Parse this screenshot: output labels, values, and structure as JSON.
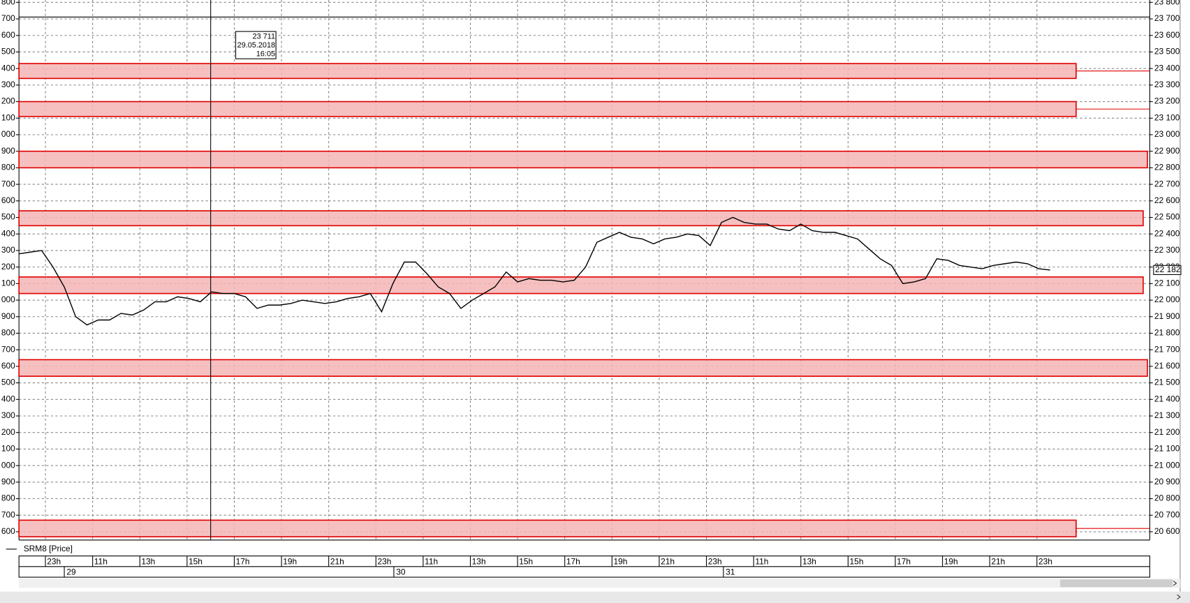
{
  "chart_data": {
    "type": "line",
    "legend": "SRM8 [Price]",
    "series": [
      {
        "name": "SRM8 [Price]",
        "color": "#000000",
        "x": [
          -0.56,
          -0.32,
          -0.08,
          0.16,
          0.4,
          0.64,
          0.88,
          1.12,
          1.36,
          1.6,
          1.84,
          2.08,
          2.32,
          2.56,
          2.8,
          3.04,
          3.28,
          3.52,
          3.76,
          4.0,
          4.24,
          4.48,
          4.72,
          4.96,
          5.2,
          5.44,
          5.68,
          5.92,
          6.16,
          6.4,
          6.64,
          6.88,
          7.12,
          7.36,
          7.6,
          7.84,
          8.08,
          8.32,
          8.56,
          8.8,
          9.04,
          9.28,
          9.52,
          9.76,
          10.0,
          10.24,
          10.48,
          10.72,
          10.96,
          11.2,
          11.44,
          11.68,
          11.92,
          12.16,
          12.4,
          12.64,
          12.88,
          13.12,
          13.36,
          13.6,
          13.84,
          14.08,
          14.32,
          14.56,
          14.8,
          15.04,
          15.28,
          15.52,
          15.76,
          16.0,
          16.24,
          16.48,
          16.72,
          16.96,
          17.2,
          17.44,
          17.68,
          17.92,
          18.16,
          18.4,
          18.64,
          18.88,
          19.12,
          19.36,
          19.6,
          19.84,
          20.08,
          20.32,
          20.56,
          20.8,
          21.04,
          21.28
        ],
        "values": [
          22280,
          22290,
          22300,
          22200,
          22080,
          21900,
          21850,
          21880,
          21880,
          21920,
          21910,
          21940,
          21990,
          21990,
          22020,
          22010,
          21990,
          22050,
          22040,
          22040,
          22020,
          21950,
          21970,
          21970,
          21980,
          22000,
          21990,
          21980,
          21990,
          22010,
          22020,
          22040,
          21930,
          22100,
          22230,
          22230,
          22160,
          22080,
          22040,
          21950,
          22000,
          22040,
          22080,
          22170,
          22110,
          22130,
          22120,
          22120,
          22110,
          22120,
          22200,
          22350,
          22380,
          22410,
          22380,
          22370,
          22340,
          22370,
          22380,
          22400,
          22390,
          22330,
          22470,
          22500,
          22470,
          22460,
          22460,
          22430,
          22420,
          22460,
          22420,
          22410,
          22410,
          22390,
          22370,
          22310,
          22250,
          22210,
          22100,
          22110,
          22130,
          22250,
          22240,
          22210,
          22200,
          22190,
          22210,
          22220,
          22230,
          22220,
          22190,
          22182
        ]
      }
    ],
    "last_price": {
      "value": 22182,
      "label": "22 182"
    },
    "zones": [
      {
        "low": 23340,
        "high": 23430,
        "end": 21.83
      },
      {
        "low": 23110,
        "high": 23200,
        "end": 21.83
      },
      {
        "low": 22800,
        "high": 22900,
        "end": 23.34
      },
      {
        "low": 22450,
        "high": 22540,
        "end": 23.25
      },
      {
        "low": 22040,
        "high": 22140,
        "end": 23.25
      },
      {
        "low": 21540,
        "high": 21640,
        "end": 23.34
      },
      {
        "low": 20570,
        "high": 20670,
        "end": 21.83
      }
    ],
    "zone_fill": "#f5b5b5",
    "zone_stroke": "#e00000",
    "crosshair": {
      "x": 3.5,
      "y": 23711,
      "labels": [
        "23 711",
        "29.05.2018",
        "16:05"
      ]
    },
    "xlim": [
      -0.56,
      23.39
    ],
    "xticks": [
      {
        "value": 0,
        "label": "23h"
      },
      {
        "value": 1,
        "label": "11h"
      },
      {
        "value": 2,
        "label": "13h"
      },
      {
        "value": 3,
        "label": "15h"
      },
      {
        "value": 4,
        "label": "17h"
      },
      {
        "value": 5,
        "label": "19h"
      },
      {
        "value": 6,
        "label": "21h"
      },
      {
        "value": 7,
        "label": "23h"
      },
      {
        "value": 8,
        "label": "11h"
      },
      {
        "value": 9,
        "label": "13h"
      },
      {
        "value": 10,
        "label": "15h"
      },
      {
        "value": 11,
        "label": "17h"
      },
      {
        "value": 12,
        "label": "19h"
      },
      {
        "value": 13,
        "label": "21h"
      },
      {
        "value": 14,
        "label": "23h"
      },
      {
        "value": 15,
        "label": "11h"
      },
      {
        "value": 16,
        "label": "13h"
      },
      {
        "value": 17,
        "label": "15h"
      },
      {
        "value": 18,
        "label": "17h"
      },
      {
        "value": 19,
        "label": "19h"
      },
      {
        "value": 20,
        "label": "21h"
      },
      {
        "value": 21,
        "label": "23h"
      }
    ],
    "day_ticks": [
      {
        "value": 0.4,
        "label": "29"
      },
      {
        "value": 7.38,
        "label": "30"
      },
      {
        "value": 14.36,
        "label": "31"
      }
    ],
    "ylim": [
      20550,
      23814
    ],
    "yticks": [
      {
        "value": 20600,
        "label": "20 600"
      },
      {
        "value": 20700,
        "label": "20 700"
      },
      {
        "value": 20800,
        "label": "20 800"
      },
      {
        "value": 20900,
        "label": "20 900"
      },
      {
        "value": 21000,
        "label": "21 000"
      },
      {
        "value": 21100,
        "label": "21 100"
      },
      {
        "value": 21200,
        "label": "21 200"
      },
      {
        "value": 21300,
        "label": "21 300"
      },
      {
        "value": 21400,
        "label": "21 400"
      },
      {
        "value": 21500,
        "label": "21 500"
      },
      {
        "value": 21600,
        "label": "21 600"
      },
      {
        "value": 21700,
        "label": "21 700"
      },
      {
        "value": 21800,
        "label": "21 800"
      },
      {
        "value": 21900,
        "label": "21 900"
      },
      {
        "value": 22000,
        "label": "22 000"
      },
      {
        "value": 22100,
        "label": "22 100"
      },
      {
        "value": 22200,
        "label": "22 200"
      },
      {
        "value": 22300,
        "label": "22 300"
      },
      {
        "value": 22400,
        "label": "22 400"
      },
      {
        "value": 22500,
        "label": "22 500"
      },
      {
        "value": 22600,
        "label": "22 600"
      },
      {
        "value": 22700,
        "label": "22 700"
      },
      {
        "value": 22800,
        "label": "22 800"
      },
      {
        "value": 22900,
        "label": "22 900"
      },
      {
        "value": 23000,
        "label": "23 000"
      },
      {
        "value": 23100,
        "label": "23 100"
      },
      {
        "value": 23200,
        "label": "23 200"
      },
      {
        "value": 23300,
        "label": "23 300"
      },
      {
        "value": 23400,
        "label": "23 400"
      },
      {
        "value": 23500,
        "label": "23 500"
      },
      {
        "value": 23600,
        "label": "23 600"
      },
      {
        "value": 23700,
        "label": "23 700"
      },
      {
        "value": 23800,
        "label": "23 800"
      }
    ],
    "grid": true
  }
}
